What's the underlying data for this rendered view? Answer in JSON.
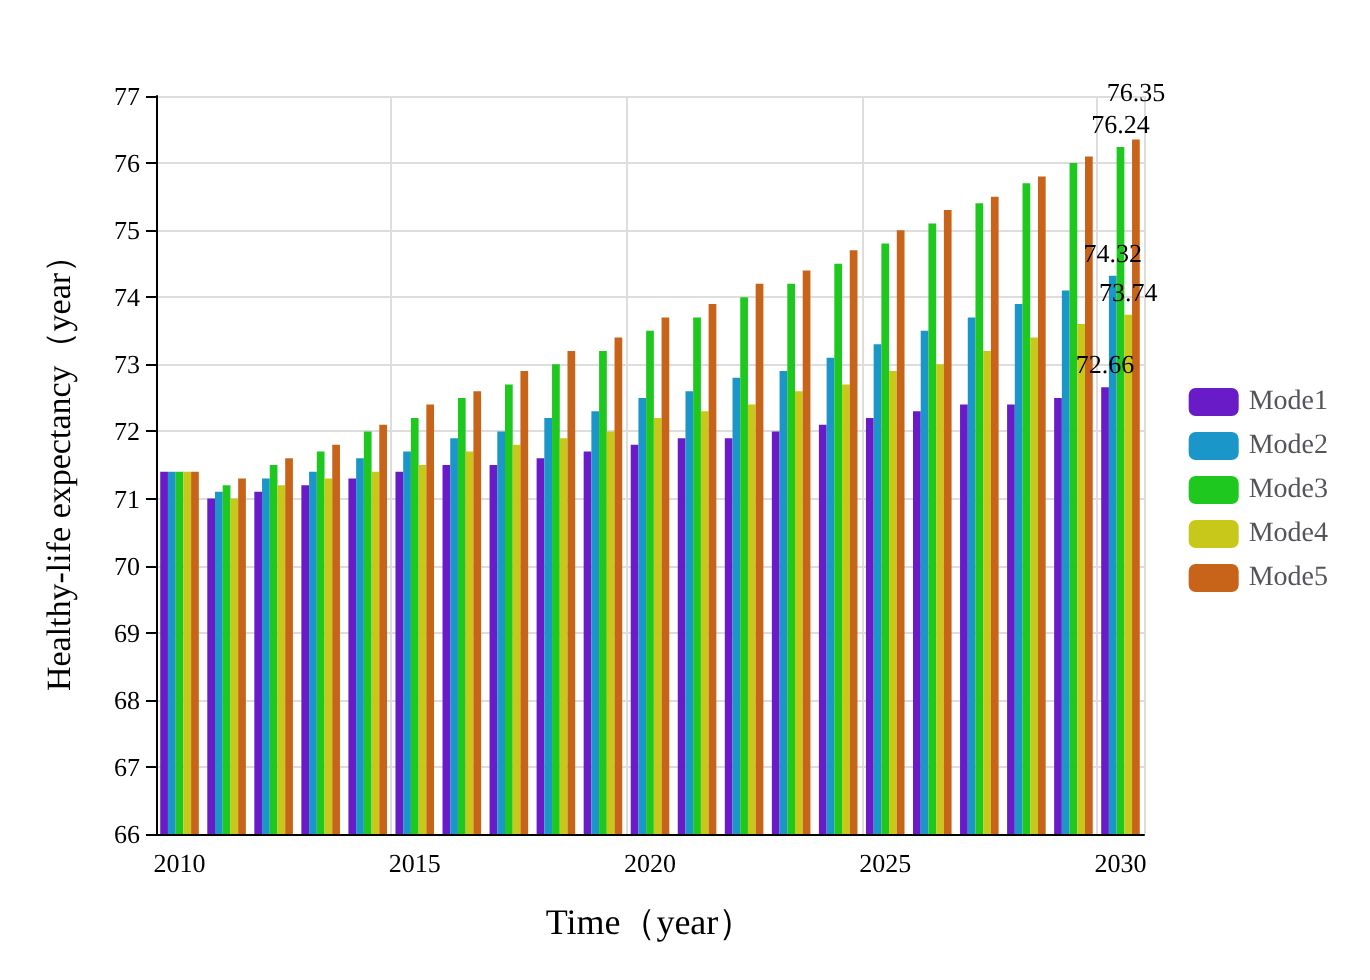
{
  "chart_data": {
    "type": "bar",
    "xlabel": "Time（year）",
    "ylabel": "Healthy-life expectancy（year）",
    "categories": [
      "2010",
      null,
      null,
      null,
      null,
      "2015",
      null,
      null,
      null,
      null,
      "2020",
      null,
      null,
      null,
      null,
      "2025",
      null,
      null,
      null,
      null,
      "2030"
    ],
    "series": [
      {
        "name": "Mode1",
        "color": "#6a1bc8",
        "values": [
          71.4,
          71.0,
          71.1,
          71.2,
          71.3,
          71.4,
          71.5,
          71.5,
          71.6,
          71.7,
          71.8,
          71.9,
          71.9,
          72.0,
          72.1,
          72.2,
          72.3,
          72.4,
          72.4,
          72.5,
          72.66
        ],
        "value_labels": [
          null,
          null,
          null,
          null,
          null,
          null,
          null,
          null,
          null,
          null,
          null,
          null,
          null,
          null,
          null,
          null,
          null,
          null,
          null,
          null,
          "72.66"
        ]
      },
      {
        "name": "Mode2",
        "color": "#1a96c8",
        "values": [
          71.4,
          71.1,
          71.3,
          71.4,
          71.6,
          71.7,
          71.9,
          72.0,
          72.2,
          72.3,
          72.5,
          72.6,
          72.8,
          72.9,
          73.1,
          73.3,
          73.5,
          73.7,
          73.9,
          74.1,
          74.32
        ],
        "value_labels": [
          null,
          null,
          null,
          null,
          null,
          null,
          null,
          null,
          null,
          null,
          null,
          null,
          null,
          null,
          null,
          null,
          null,
          null,
          null,
          null,
          "74.32"
        ]
      },
      {
        "name": "Mode3",
        "color": "#1ec81e",
        "values": [
          71.4,
          71.2,
          71.5,
          71.7,
          72.0,
          72.2,
          72.5,
          72.7,
          73.0,
          73.2,
          73.5,
          73.7,
          74.0,
          74.2,
          74.5,
          74.8,
          75.1,
          75.4,
          75.7,
          76.0,
          76.24
        ],
        "value_labels": [
          null,
          null,
          null,
          null,
          null,
          null,
          null,
          null,
          null,
          null,
          null,
          null,
          null,
          null,
          null,
          null,
          null,
          null,
          null,
          null,
          "76.24"
        ]
      },
      {
        "name": "Mode4",
        "color": "#c8c81a",
        "values": [
          71.4,
          71.0,
          71.2,
          71.3,
          71.4,
          71.5,
          71.7,
          71.8,
          71.9,
          72.0,
          72.2,
          72.3,
          72.4,
          72.6,
          72.7,
          72.9,
          73.0,
          73.2,
          73.4,
          73.6,
          73.74
        ],
        "value_labels": [
          null,
          null,
          null,
          null,
          null,
          null,
          null,
          null,
          null,
          null,
          null,
          null,
          null,
          null,
          null,
          null,
          null,
          null,
          null,
          null,
          "73.74"
        ]
      },
      {
        "name": "Mode5",
        "color": "#c8641a",
        "values": [
          71.4,
          71.3,
          71.6,
          71.8,
          72.1,
          72.4,
          72.6,
          72.9,
          73.2,
          73.4,
          73.7,
          73.9,
          74.2,
          74.4,
          74.7,
          75.0,
          75.3,
          75.5,
          75.8,
          76.1,
          76.35
        ],
        "value_labels": [
          null,
          null,
          null,
          null,
          null,
          null,
          null,
          null,
          null,
          null,
          null,
          null,
          null,
          null,
          null,
          null,
          null,
          null,
          null,
          null,
          "76.35"
        ]
      }
    ],
    "ylim": [
      66,
      77
    ],
    "yticks": [
      66,
      67,
      68,
      69,
      70,
      71,
      72,
      73,
      74,
      75,
      76,
      77
    ],
    "grid": true,
    "legend": "right"
  }
}
